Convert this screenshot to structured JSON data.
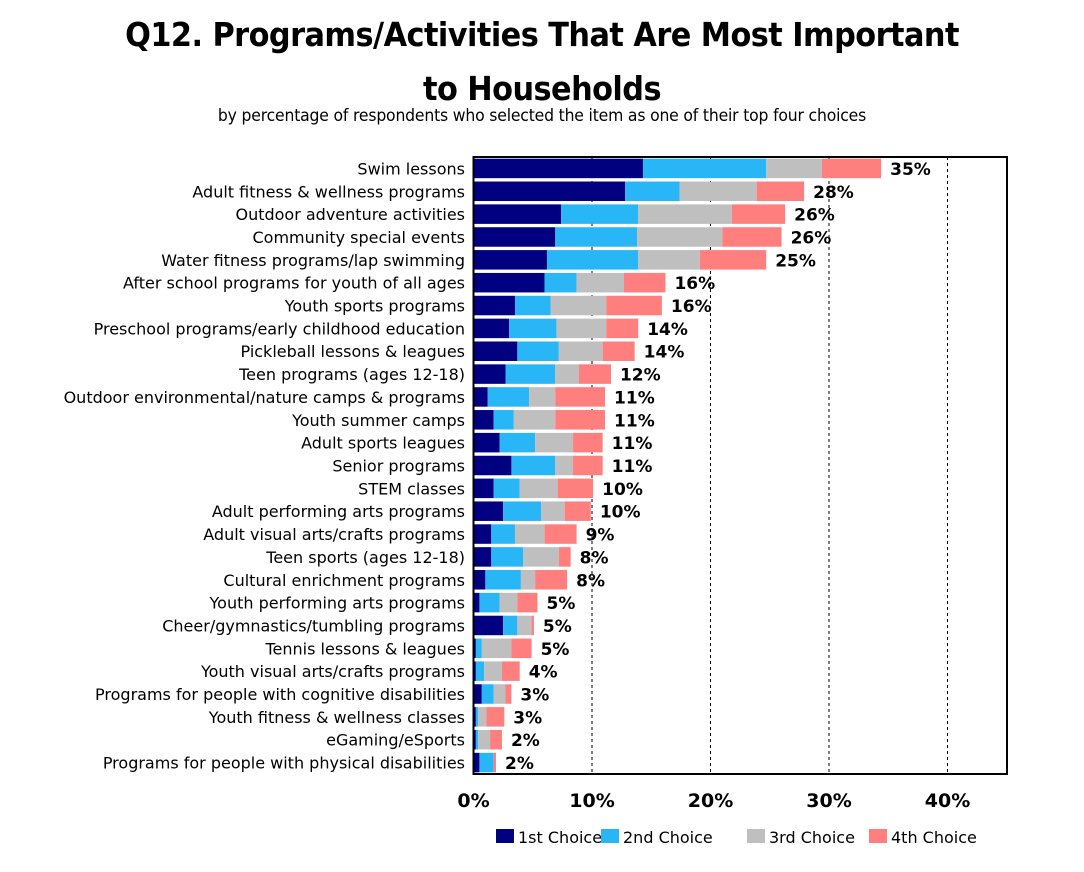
{
  "chart_data": {
    "type": "bar",
    "orientation": "horizontal",
    "stacked": true,
    "title": "Q12. Programs/Activities That Are Most Important to Households",
    "title_lines": [
      "Q12. Programs/Activities That Are Most Important",
      "to Households"
    ],
    "subtitle": "by percentage of respondents who selected the item as one of their top four choices",
    "xlabel": "",
    "ylabel": "",
    "xlim": [
      0,
      45
    ],
    "xticks": [
      0,
      10,
      20,
      30,
      40
    ],
    "xtick_labels": [
      "0%",
      "10%",
      "20%",
      "30%",
      "40%"
    ],
    "grid": "vertical dashed",
    "legend_position": "bottom",
    "categories": [
      "Swim lessons",
      "Adult fitness & wellness programs",
      "Outdoor adventure activities",
      "Community special events",
      "Water fitness programs/lap swimming",
      "After school programs for youth of all ages",
      "Youth sports programs",
      "Preschool programs/early childhood education",
      "Pickleball lessons & leagues",
      "Teen programs (ages 12-18)",
      "Outdoor environmental/nature camps & programs",
      "Youth summer camps",
      "Adult sports leagues",
      "Senior programs",
      "STEM classes",
      "Adult performing arts programs",
      "Adult visual arts/crafts programs",
      "Teen sports (ages 12-18)",
      "Cultural enrichment programs",
      "Youth performing arts programs",
      "Cheer/gymnastics/tumbling programs",
      "Tennis lessons & leagues",
      "Youth visual arts/crafts programs",
      "Programs for people with cognitive disabilities",
      "Youth fitness & wellness classes",
      "eGaming/eSports",
      "Programs for people with physical disabilities"
    ],
    "series": [
      {
        "name": "1st Choice",
        "color": "#000080",
        "values": [
          14.3,
          12.8,
          7.4,
          6.9,
          6.2,
          6.0,
          3.5,
          3.0,
          3.7,
          2.7,
          1.2,
          1.7,
          2.2,
          3.2,
          1.7,
          2.5,
          1.5,
          1.5,
          1.0,
          0.5,
          2.5,
          0.2,
          0.2,
          0.7,
          0.2,
          0.2,
          0.5
        ]
      },
      {
        "name": "2nd Choice",
        "color": "#29B6F6",
        "values": [
          10.4,
          4.6,
          6.5,
          6.9,
          7.7,
          2.7,
          3.0,
          4.0,
          3.5,
          4.2,
          3.5,
          1.7,
          3.0,
          3.7,
          2.2,
          3.2,
          2.0,
          2.7,
          3.0,
          1.7,
          1.2,
          0.5,
          0.7,
          1.0,
          0.2,
          0.2,
          1.2
        ]
      },
      {
        "name": "3rd Choice",
        "color": "#BFBFBF",
        "values": [
          4.7,
          6.5,
          7.9,
          7.2,
          5.2,
          4.0,
          4.7,
          4.2,
          3.7,
          2.0,
          2.2,
          3.5,
          3.2,
          1.5,
          3.2,
          2.0,
          2.5,
          3.0,
          1.2,
          1.5,
          1.2,
          2.5,
          1.5,
          1.0,
          0.7,
          1.0,
          0.0
        ]
      },
      {
        "name": "4th Choice",
        "color": "#FF7F7F",
        "values": [
          5.0,
          4.0,
          4.5,
          5.0,
          5.6,
          3.5,
          4.7,
          2.7,
          2.7,
          2.7,
          4.2,
          4.2,
          2.5,
          2.5,
          3.0,
          2.2,
          2.7,
          1.0,
          2.7,
          1.7,
          0.2,
          1.7,
          1.5,
          0.5,
          1.5,
          1.0,
          0.2
        ]
      }
    ],
    "totals": [
      35,
      28,
      26,
      26,
      25,
      16,
      16,
      14,
      14,
      12,
      11,
      11,
      11,
      11,
      10,
      10,
      9,
      8,
      8,
      5,
      5,
      5,
      4,
      3,
      3,
      2,
      2
    ],
    "total_labels": [
      "35%",
      "28%",
      "26%",
      "26%",
      "25%",
      "16%",
      "16%",
      "14%",
      "14%",
      "12%",
      "11%",
      "11%",
      "11%",
      "11%",
      "10%",
      "10%",
      "9%",
      "8%",
      "8%",
      "5%",
      "5%",
      "5%",
      "4%",
      "3%",
      "3%",
      "2%",
      "2%"
    ]
  }
}
